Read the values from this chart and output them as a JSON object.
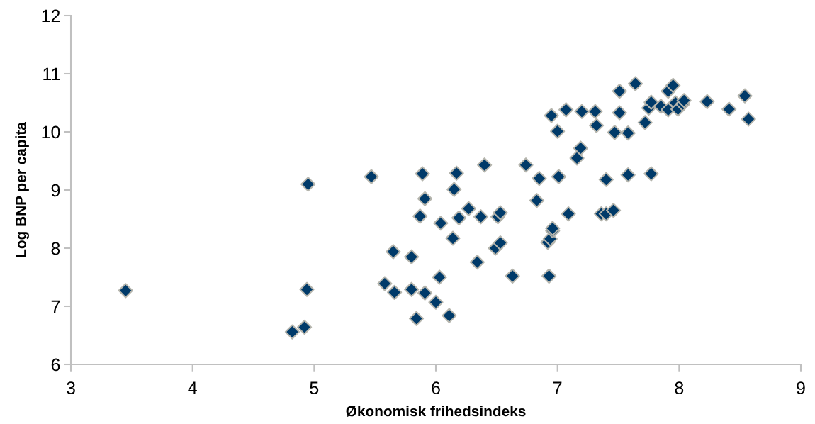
{
  "chart_data": {
    "type": "scatter",
    "xlabel": "Økonomisk frihedsindeks",
    "ylabel": "Log BNP per capita",
    "xlim": [
      3,
      9
    ],
    "xticks": [
      3,
      4,
      5,
      6,
      7,
      8,
      9
    ],
    "ylim": [
      6,
      12
    ],
    "yticks": [
      6,
      7,
      8,
      9,
      10,
      11,
      12
    ],
    "grid": false,
    "legend": false,
    "marker": "diamond",
    "series": [
      {
        "color": "#003a69",
        "x": [
          3.45,
          4.82,
          4.92,
          4.94,
          4.95,
          5.47,
          5.58,
          5.65,
          5.66,
          5.8,
          5.8,
          5.84,
          5.87,
          5.89,
          5.91,
          5.91,
          6.0,
          6.03,
          6.04,
          6.11,
          6.14,
          6.15,
          6.17,
          6.19,
          6.27,
          6.34,
          6.37,
          6.4,
          6.49,
          6.51,
          6.53,
          6.53,
          6.63,
          6.74,
          6.83,
          6.85,
          6.92,
          6.94,
          6.96,
          6.96,
          6.93,
          6.95,
          7.0,
          7.01,
          7.07,
          7.09,
          7.16,
          7.19,
          7.2,
          7.31,
          7.32,
          7.36,
          7.4,
          7.4,
          7.46,
          7.47,
          7.51,
          7.51,
          7.58,
          7.58,
          7.64,
          7.72,
          7.75,
          7.77,
          7.77,
          7.85,
          7.91,
          7.91,
          7.95,
          7.97,
          7.99,
          8.03,
          8.04,
          8.23,
          8.41,
          8.54,
          8.57
        ],
        "values": [
          7.27,
          6.56,
          6.64,
          7.29,
          9.1,
          9.23,
          7.39,
          7.94,
          7.24,
          7.85,
          7.29,
          6.79,
          8.55,
          9.28,
          8.85,
          7.23,
          7.07,
          7.5,
          8.43,
          6.84,
          8.17,
          9.01,
          9.29,
          8.52,
          8.68,
          7.76,
          8.54,
          9.43,
          8.0,
          8.54,
          8.61,
          8.09,
          7.52,
          9.43,
          8.82,
          9.2,
          8.1,
          8.16,
          8.3,
          8.34,
          7.52,
          10.28,
          10.01,
          9.23,
          10.38,
          8.59,
          9.55,
          9.72,
          10.35,
          10.35,
          10.11,
          8.59,
          9.18,
          8.59,
          8.65,
          9.99,
          10.7,
          10.33,
          9.26,
          9.98,
          10.83,
          10.16,
          10.41,
          10.51,
          9.28,
          10.44,
          10.7,
          10.38,
          10.8,
          10.5,
          10.39,
          10.48,
          10.54,
          10.52,
          10.39,
          10.62,
          10.22
        ]
      }
    ]
  }
}
